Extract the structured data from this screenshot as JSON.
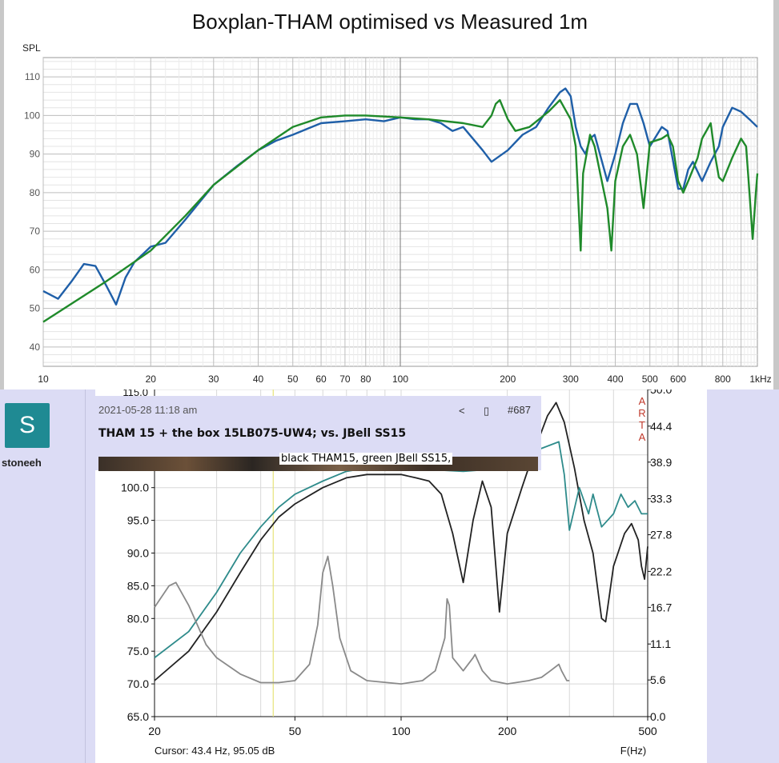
{
  "top_chart": {
    "title": "Boxplan-THAM optimised vs Measured 1m",
    "ylabel": "SPL",
    "y_ticks": [
      "40",
      "50",
      "60",
      "70",
      "80",
      "90",
      "100",
      "110"
    ],
    "x_ticks": [
      "10",
      "20",
      "30",
      "40",
      "50",
      "60",
      "70",
      "80",
      "100",
      "200",
      "300",
      "400",
      "500",
      "600",
      "800",
      "1kHz"
    ]
  },
  "forum": {
    "author": {
      "initial": "S",
      "username": "stoneeh",
      "avatar_color": "#1f8a93"
    },
    "post": {
      "date": "2021-05-28 11:18 am",
      "number": "#687",
      "title": "THAM 15 + the box 15LB075-UW4; vs. JBell SS15",
      "caption": "black THAM15, green JBell SS15,"
    },
    "icons": {
      "share": "share-icon",
      "bookmark": "bookmark-icon"
    }
  },
  "arta_chart": {
    "top_left_tick": "115.0",
    "left_ticks": [
      "65.0",
      "70.0",
      "75.0",
      "80.0",
      "85.0",
      "90.0",
      "95.0",
      "100.0"
    ],
    "right_ticks": [
      "0.0",
      "5.6",
      "11.1",
      "16.7",
      "22.2",
      "27.8",
      "33.3",
      "38.9",
      "44.4",
      "50.0"
    ],
    "x_ticks": [
      "20",
      "50",
      "100",
      "200",
      "500"
    ],
    "arta_label": [
      "A",
      "R",
      "T",
      "A"
    ],
    "cursor_readout": "Cursor: 43.4 Hz, 95.05 dB",
    "xlabel": "F(Hz)"
  },
  "chart_data": [
    {
      "type": "line",
      "title": "Boxplan-THAM optimised vs Measured 1m",
      "ylabel": "SPL",
      "xlabel": "",
      "x_scale": "log",
      "xlim": [
        10,
        1000
      ],
      "ylim": [
        35,
        115
      ],
      "grid": true,
      "series": [
        {
          "color": "#1f5fa8",
          "points": [
            [
              10,
              54.5
            ],
            [
              11,
              52.5
            ],
            [
              12,
              57
            ],
            [
              13,
              61.5
            ],
            [
              14,
              61
            ],
            [
              15,
              56
            ],
            [
              16,
              51
            ],
            [
              17,
              58
            ],
            [
              18,
              62
            ],
            [
              20,
              66
            ],
            [
              22,
              67
            ],
            [
              25,
              73
            ],
            [
              30,
              82
            ],
            [
              35,
              87
            ],
            [
              40,
              91
            ],
            [
              45,
              93.5
            ],
            [
              50,
              95
            ],
            [
              60,
              98
            ],
            [
              70,
              98.5
            ],
            [
              80,
              99
            ],
            [
              90,
              98.5
            ],
            [
              100,
              99.5
            ],
            [
              110,
              99
            ],
            [
              120,
              99
            ],
            [
              130,
              98
            ],
            [
              140,
              96
            ],
            [
              150,
              97
            ],
            [
              170,
              91
            ],
            [
              180,
              88
            ],
            [
              200,
              91
            ],
            [
              220,
              95
            ],
            [
              240,
              97
            ],
            [
              260,
              102
            ],
            [
              280,
              106
            ],
            [
              290,
              107
            ],
            [
              300,
              105
            ],
            [
              310,
              97
            ],
            [
              320,
              92
            ],
            [
              330,
              90
            ],
            [
              340,
              94
            ],
            [
              350,
              95
            ],
            [
              380,
              83
            ],
            [
              400,
              90
            ],
            [
              420,
              98
            ],
            [
              440,
              103
            ],
            [
              460,
              103
            ],
            [
              480,
              98
            ],
            [
              500,
              92
            ],
            [
              540,
              97
            ],
            [
              560,
              96
            ],
            [
              600,
              81
            ],
            [
              620,
              81
            ],
            [
              640,
              86
            ],
            [
              660,
              88
            ],
            [
              700,
              83
            ],
            [
              740,
              88
            ],
            [
              780,
              92
            ],
            [
              800,
              97
            ],
            [
              850,
              102
            ],
            [
              900,
              101
            ],
            [
              950,
              99
            ],
            [
              1000,
              97
            ]
          ]
        },
        {
          "color": "#1f8a2a",
          "points": [
            [
              10,
              46.5
            ],
            [
              15,
              57
            ],
            [
              20,
              65
            ],
            [
              25,
              74
            ],
            [
              30,
              82
            ],
            [
              40,
              91
            ],
            [
              50,
              97
            ],
            [
              60,
              99.5
            ],
            [
              70,
              100
            ],
            [
              80,
              100
            ],
            [
              100,
              99.5
            ],
            [
              120,
              99
            ],
            [
              150,
              98
            ],
            [
              170,
              97
            ],
            [
              180,
              100
            ],
            [
              185,
              103
            ],
            [
              190,
              104
            ],
            [
              200,
              99
            ],
            [
              210,
              96
            ],
            [
              230,
              97
            ],
            [
              260,
              101
            ],
            [
              280,
              104
            ],
            [
              300,
              99
            ],
            [
              310,
              92
            ],
            [
              320,
              65
            ],
            [
              325,
              85
            ],
            [
              340,
              95
            ],
            [
              350,
              92
            ],
            [
              380,
              76
            ],
            [
              390,
              65
            ],
            [
              400,
              83
            ],
            [
              420,
              92
            ],
            [
              440,
              95
            ],
            [
              460,
              90
            ],
            [
              480,
              76
            ],
            [
              500,
              93
            ],
            [
              540,
              94
            ],
            [
              560,
              95
            ],
            [
              580,
              92
            ],
            [
              600,
              83
            ],
            [
              620,
              80
            ],
            [
              640,
              83
            ],
            [
              680,
              89
            ],
            [
              700,
              94
            ],
            [
              740,
              98
            ],
            [
              760,
              90
            ],
            [
              780,
              84
            ],
            [
              800,
              83
            ],
            [
              850,
              89
            ],
            [
              900,
              94
            ],
            [
              930,
              92
            ],
            [
              950,
              80
            ],
            [
              970,
              68
            ],
            [
              990,
              80
            ],
            [
              1000,
              85
            ]
          ]
        }
      ]
    },
    {
      "type": "line",
      "title": "",
      "ylabel": "",
      "xlabel": "F(Hz)",
      "x_scale": "log",
      "xlim": [
        20,
        500
      ],
      "ylim": [
        65,
        115
      ],
      "y2lim": [
        0,
        50
      ],
      "grid": true,
      "series": [
        {
          "color": "#222222",
          "points": [
            [
              20,
              70.5
            ],
            [
              25,
              75
            ],
            [
              30,
              81
            ],
            [
              35,
              87
            ],
            [
              40,
              92
            ],
            [
              45,
              95.5
            ],
            [
              50,
              97.5
            ],
            [
              60,
              100
            ],
            [
              70,
              101.5
            ],
            [
              80,
              102
            ],
            [
              90,
              102
            ],
            [
              100,
              102
            ],
            [
              110,
              101.5
            ],
            [
              120,
              101
            ],
            [
              130,
              99
            ],
            [
              140,
              93
            ],
            [
              150,
              85.5
            ],
            [
              160,
              95
            ],
            [
              170,
              101
            ],
            [
              180,
              97
            ],
            [
              190,
              81
            ],
            [
              200,
              93
            ],
            [
              220,
              100
            ],
            [
              240,
              106
            ],
            [
              260,
              111
            ],
            [
              275,
              113
            ],
            [
              290,
              110
            ],
            [
              310,
              103
            ],
            [
              330,
              95
            ],
            [
              350,
              90
            ],
            [
              370,
              80
            ],
            [
              380,
              79.5
            ],
            [
              400,
              88
            ],
            [
              430,
              93
            ],
            [
              450,
              94.5
            ],
            [
              470,
              92
            ],
            [
              480,
              88
            ],
            [
              490,
              86
            ],
            [
              500,
              91
            ]
          ]
        },
        {
          "color": "#2e8b8b",
          "points": [
            [
              20,
              74
            ],
            [
              25,
              78
            ],
            [
              30,
              84
            ],
            [
              35,
              90
            ],
            [
              40,
              94
            ],
            [
              45,
              97
            ],
            [
              50,
              99
            ],
            [
              60,
              101
            ],
            [
              70,
              102.5
            ],
            [
              80,
              103
            ],
            [
              100,
              103
            ],
            [
              150,
              102.5
            ],
            [
              200,
              103
            ],
            [
              250,
              106
            ],
            [
              280,
              107
            ],
            [
              290,
              102
            ],
            [
              300,
              93.5
            ],
            [
              320,
              100
            ],
            [
              340,
              96
            ],
            [
              350,
              99
            ],
            [
              370,
              94
            ],
            [
              400,
              96
            ],
            [
              420,
              99
            ],
            [
              440,
              97
            ],
            [
              460,
              98
            ],
            [
              480,
              96
            ],
            [
              500,
              96
            ]
          ]
        },
        {
          "color": "#8a8a8a",
          "axis": "right",
          "points": [
            [
              20,
              16.7
            ],
            [
              22,
              20
            ],
            [
              23,
              20.5
            ],
            [
              25,
              17
            ],
            [
              28,
              11
            ],
            [
              30,
              9
            ],
            [
              35,
              6.5
            ],
            [
              40,
              5.2
            ],
            [
              45,
              5.2
            ],
            [
              50,
              5.5
            ],
            [
              55,
              8
            ],
            [
              58,
              14
            ],
            [
              60,
              22
            ],
            [
              62,
              24.5
            ],
            [
              64,
              20
            ],
            [
              67,
              12
            ],
            [
              72,
              7
            ],
            [
              80,
              5.5
            ],
            [
              100,
              5
            ],
            [
              115,
              5.5
            ],
            [
              125,
              7
            ],
            [
              133,
              12
            ],
            [
              135,
              18
            ],
            [
              137,
              17
            ],
            [
              140,
              9
            ],
            [
              150,
              7
            ],
            [
              160,
              9
            ],
            [
              162,
              9.5
            ],
            [
              170,
              7
            ],
            [
              180,
              5.5
            ],
            [
              200,
              5
            ],
            [
              230,
              5.5
            ],
            [
              250,
              6
            ],
            [
              265,
              7
            ],
            [
              280,
              8
            ],
            [
              285,
              7
            ],
            [
              295,
              5.5
            ],
            [
              300,
              5.5
            ]
          ]
        }
      ]
    }
  ]
}
